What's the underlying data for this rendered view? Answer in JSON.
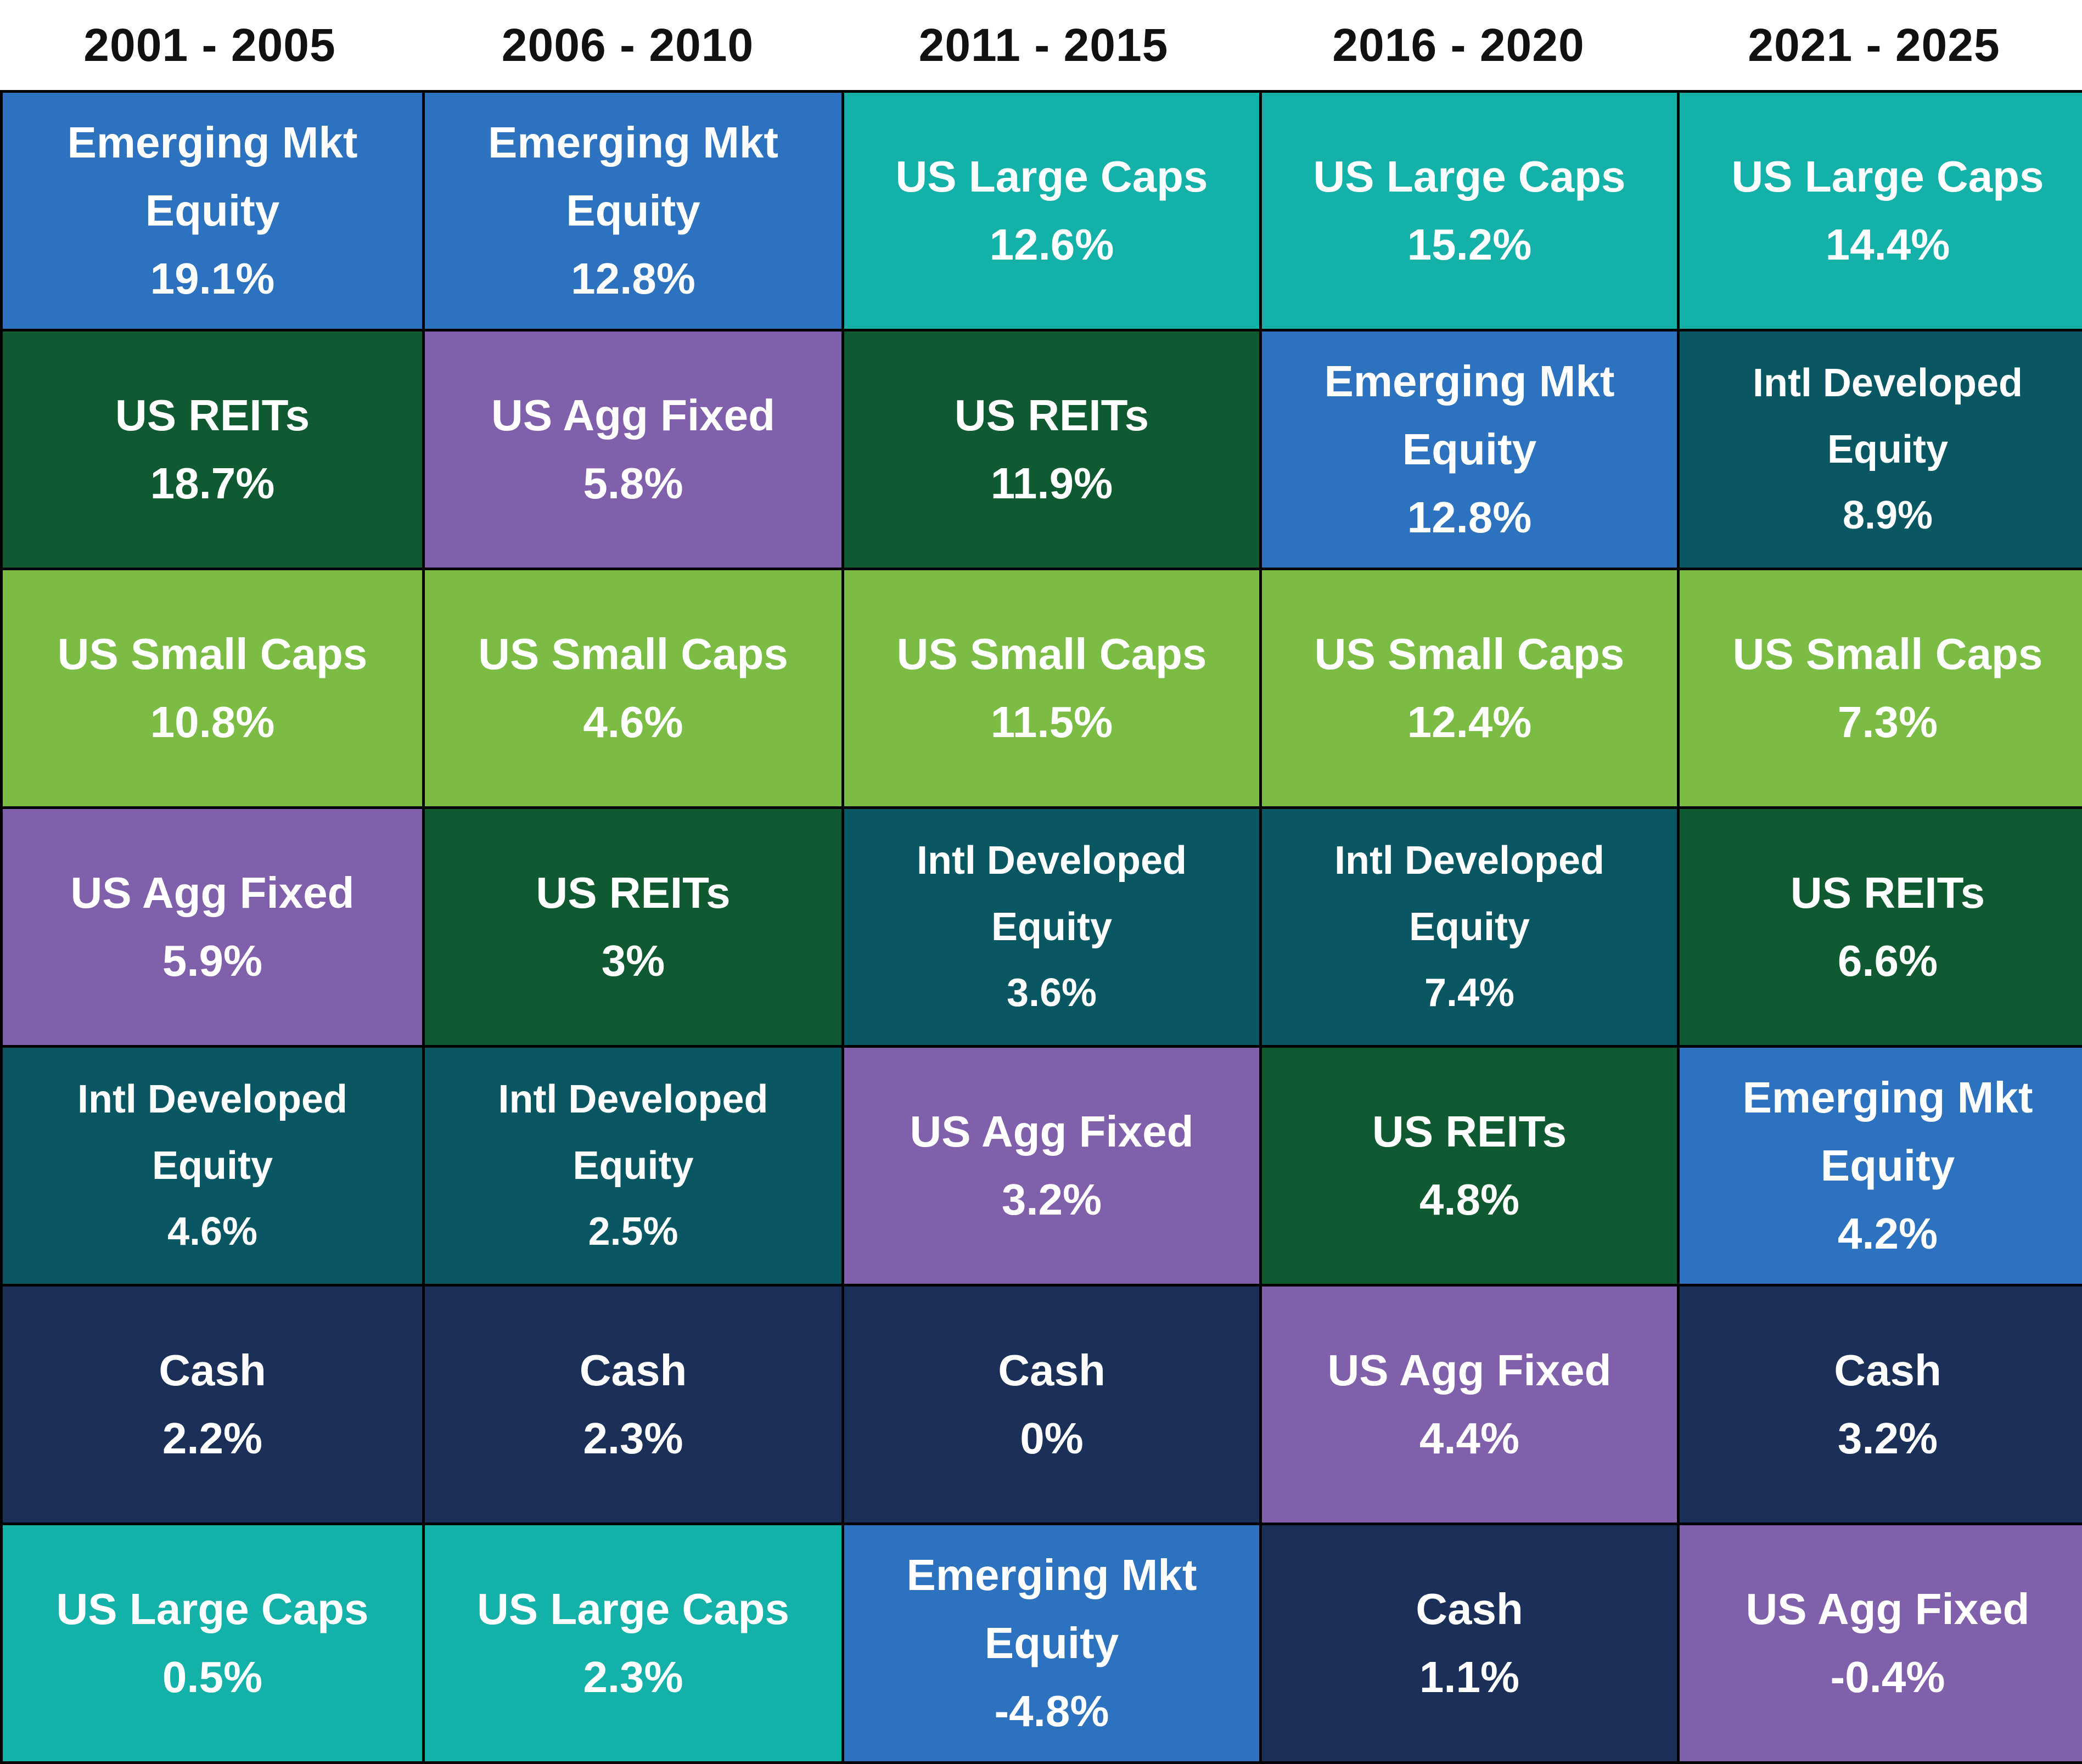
{
  "chart_data": {
    "type": "table",
    "columns": [
      "2001 - 2005",
      "2006 - 2010",
      "2011 - 2015",
      "2016 - 2020",
      "2021 - 2025"
    ],
    "colors": {
      "Emerging Mkt Equity": "#2c72be",
      "US REITs": "#0f5a30",
      "US Small Caps": "#7bbd44",
      "US Agg Fixed": "#8060ab",
      "Intl Developed Equity": "#0a5764",
      "Cash": "#1a3058",
      "US Large Caps": "#14b1a8"
    },
    "cells": [
      [
        {
          "label": "Emerging Mkt Equity",
          "value": "19.1%"
        },
        {
          "label": "US REITs",
          "value": "18.7%"
        },
        {
          "label": "US Small Caps",
          "value": "10.8%"
        },
        {
          "label": "US Agg Fixed",
          "value": "5.9%"
        },
        {
          "label": "Intl Developed Equity",
          "value": "4.6%"
        },
        {
          "label": "Cash",
          "value": "2.2%"
        },
        {
          "label": "US Large Caps",
          "value": "0.5%"
        }
      ],
      [
        {
          "label": "Emerging Mkt Equity",
          "value": "12.8%"
        },
        {
          "label": "US Agg Fixed",
          "value": "5.8%"
        },
        {
          "label": "US Small Caps",
          "value": "4.6%"
        },
        {
          "label": "US REITs",
          "value": "3%"
        },
        {
          "label": "Intl Developed Equity",
          "value": "2.5%"
        },
        {
          "label": "Cash",
          "value": "2.3%"
        },
        {
          "label": "US Large Caps",
          "value": "2.3%"
        }
      ],
      [
        {
          "label": "US Large Caps",
          "value": "12.6%"
        },
        {
          "label": "US REITs",
          "value": "11.9%"
        },
        {
          "label": "US Small Caps",
          "value": "11.5%"
        },
        {
          "label": "Intl Developed Equity",
          "value": "3.6%"
        },
        {
          "label": "US Agg Fixed",
          "value": "3.2%"
        },
        {
          "label": "Cash",
          "value": "0%"
        },
        {
          "label": "Emerging Mkt Equity",
          "value": "-4.8%"
        }
      ],
      [
        {
          "label": "US Large Caps",
          "value": "15.2%"
        },
        {
          "label": "Emerging Mkt Equity",
          "value": "12.8%"
        },
        {
          "label": "US Small Caps",
          "value": "12.4%"
        },
        {
          "label": "Intl Developed Equity",
          "value": "7.4%"
        },
        {
          "label": "US REITs",
          "value": "4.8%"
        },
        {
          "label": "US Agg Fixed",
          "value": "4.4%"
        },
        {
          "label": "Cash",
          "value": "1.1%"
        }
      ],
      [
        {
          "label": "US Large Caps",
          "value": "14.4%"
        },
        {
          "label": "Intl Developed Equity",
          "value": "8.9%"
        },
        {
          "label": "US Small Caps",
          "value": "7.3%"
        },
        {
          "label": "US REITs",
          "value": "6.6%"
        },
        {
          "label": "Emerging Mkt Equity",
          "value": "4.2%"
        },
        {
          "label": "Cash",
          "value": "3.2%"
        },
        {
          "label": "US Agg Fixed",
          "value": "-0.4%"
        }
      ]
    ]
  }
}
